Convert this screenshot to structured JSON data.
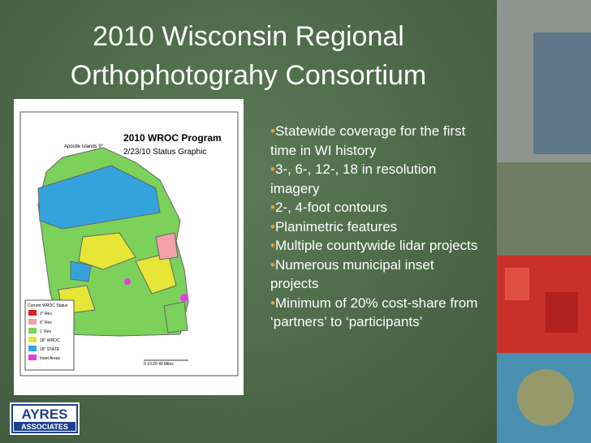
{
  "title": {
    "line1": "2010 Wisconsin Regional",
    "line2": "Orthophotograhy Consortium"
  },
  "bullets": [
    "Statewide coverage for the first time in WI history",
    "3-, 6-, 12-, 18 in resolution imagery",
    "2-, 4-foot contours",
    "Planimetric features",
    "Multiple countywide lidar projects",
    "Numerous municipal inset projects",
    "Minimum of 20% cost-share from ‘partners’ to ‘participants’"
  ],
  "map": {
    "title": "2010 WROC Program",
    "subtitle": "2/23/10 Status Graphic",
    "note": "Apostle Islands 9\"",
    "legend_title": "Current WROC Status",
    "legend": [
      "3\" Res",
      "6\" Res",
      "1' Res",
      "18\" WROC",
      "18\" STATE",
      "Inset Areas"
    ],
    "scale": "0  10  20       40 Miles"
  },
  "logo": {
    "name": "AYRES",
    "sub": "ASSOCIATES"
  }
}
